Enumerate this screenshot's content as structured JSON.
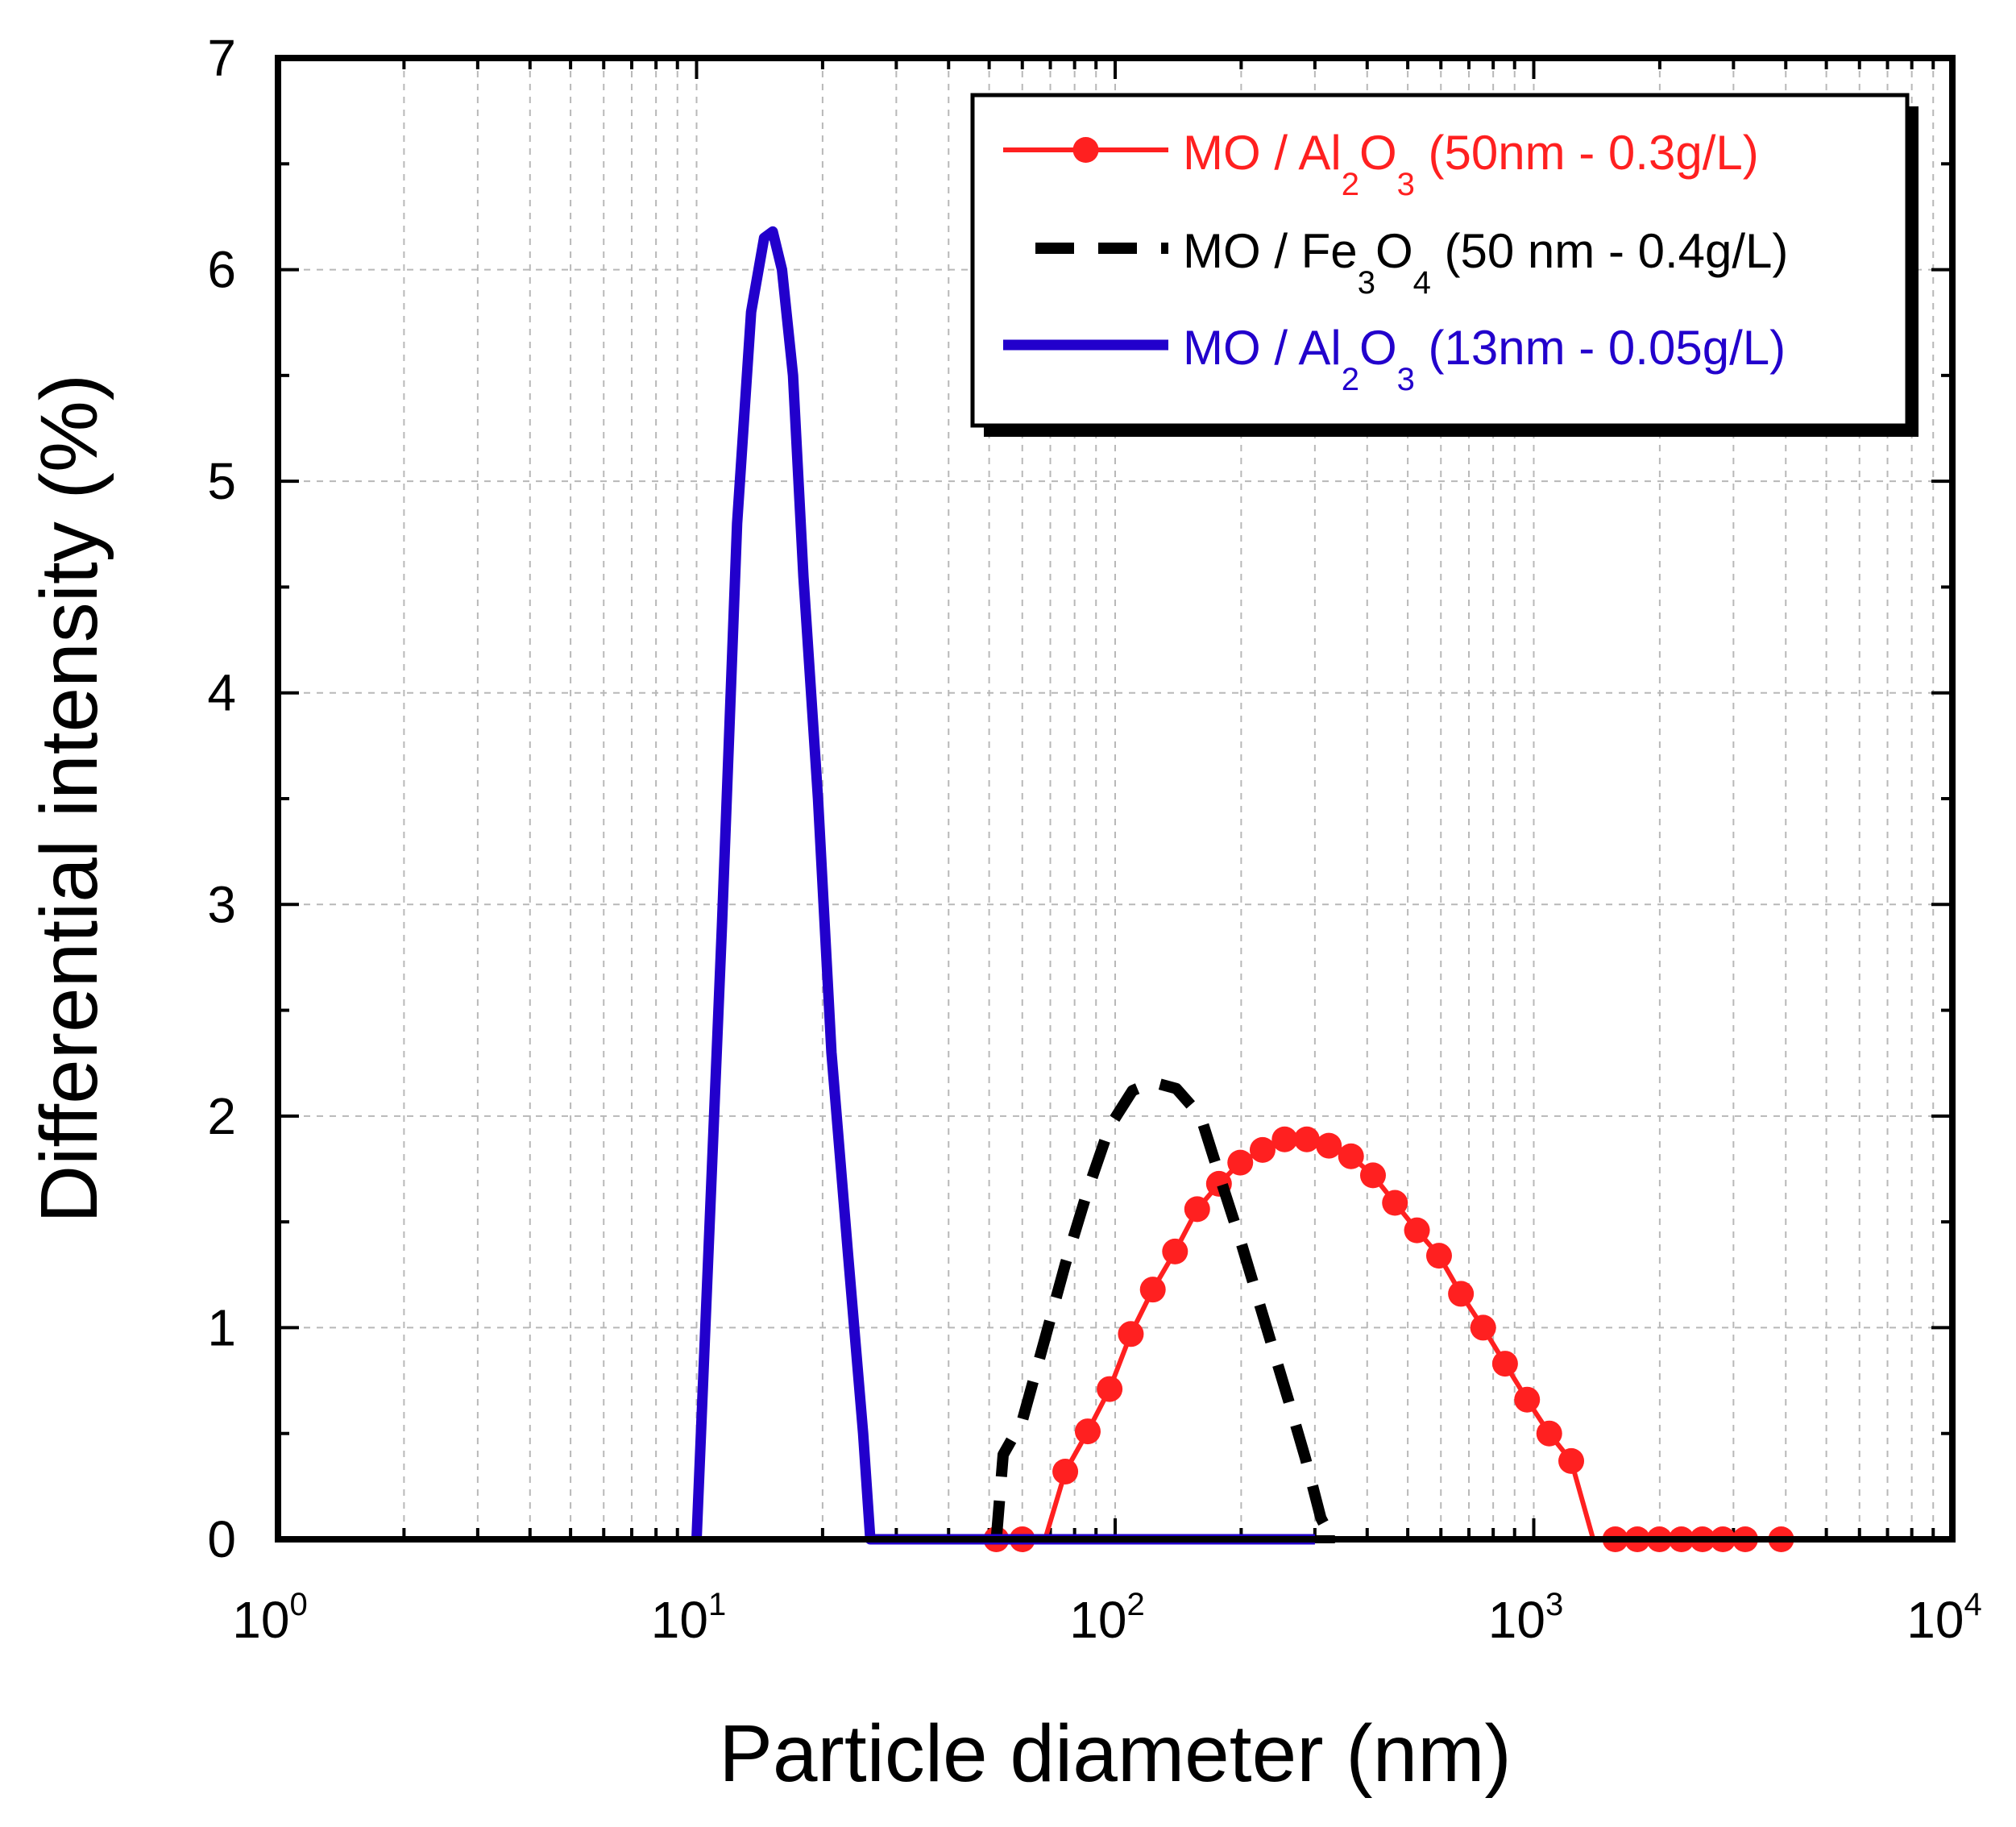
{
  "chart_data": {
    "type": "line",
    "xscale": "log",
    "xlim": [
      1,
      10000
    ],
    "ylim": [
      0,
      7
    ],
    "grid": true,
    "xlabel": "Particle diameter (nm)",
    "ylabel": "Differential intensity (%)",
    "xticks": [
      {
        "base": "10",
        "exp": "0"
      },
      {
        "base": "10",
        "exp": "1"
      },
      {
        "base": "10",
        "exp": "2"
      },
      {
        "base": "10",
        "exp": "3"
      },
      {
        "base": "10",
        "exp": "4"
      }
    ],
    "yticks": [
      "0",
      "1",
      "2",
      "3",
      "4",
      "5",
      "6",
      "7"
    ],
    "legend_position": "top-right",
    "series": [
      {
        "name": "MO / Al2O3 (50nm - 0.3g/L)",
        "legend": {
          "pre": "MO / Al",
          "sub1": "2",
          "mid": "O",
          "sub2": "3",
          "post": " (50nm - 0.3g/L)"
        },
        "color": "#ff2020",
        "style": "line-markers",
        "x": [
          52,
          60,
          68,
          76,
          86,
          97,
          109,
          123,
          139,
          157,
          177,
          199,
          225,
          254,
          287,
          324,
          366,
          413,
          466,
          526,
          594,
          670,
          757,
          854,
          964,
          1089,
          1229,
          1387,
          1566,
          1768,
          1996,
          2253,
          2530,
          2830,
          3200,
          3900
        ],
        "y": [
          0,
          0,
          0,
          0.32,
          0.51,
          0.71,
          0.97,
          1.18,
          1.36,
          1.56,
          1.68,
          1.78,
          1.84,
          1.89,
          1.89,
          1.86,
          1.81,
          1.72,
          1.59,
          1.46,
          1.34,
          1.16,
          1.0,
          0.83,
          0.66,
          0.5,
          0.37,
          0,
          0,
          0,
          0,
          0,
          0,
          0,
          0,
          0
        ],
        "markers": [
          true,
          true,
          false,
          true,
          true,
          true,
          true,
          true,
          true,
          true,
          true,
          true,
          true,
          true,
          true,
          true,
          true,
          true,
          true,
          true,
          true,
          true,
          true,
          true,
          true,
          true,
          true,
          false,
          true,
          true,
          true,
          true,
          true,
          true,
          true,
          true
        ]
      },
      {
        "name": "MO / Fe3O4 (50 nm - 0.4g/L)",
        "legend": {
          "pre": "MO / Fe",
          "sub1": "3",
          "mid": "O",
          "sub2": "4",
          "post": " (50 nm - 0.4g/L)"
        },
        "color": "#000000",
        "style": "dashed",
        "x": [
          52,
          54,
          60,
          68,
          76,
          86,
          97,
          110,
          123,
          140,
          160,
          180,
          200,
          230,
          260,
          285,
          310,
          330,
          335
        ],
        "y": [
          0,
          0.4,
          0.56,
          0.95,
          1.3,
          1.65,
          1.95,
          2.12,
          2.16,
          2.13,
          2.0,
          1.68,
          1.4,
          1.0,
          0.65,
          0.38,
          0.1,
          0.0,
          0
        ],
        "baseline_x": [
          52,
          335
        ]
      },
      {
        "name": "MO / Al2O3 (13nm - 0.05g/L)",
        "legend": {
          "pre": "MO / Al",
          "sub1": "2",
          "mid": "O",
          "sub2": "3",
          "post": " (13nm - 0.05g/L)"
        },
        "color": "#2200cc",
        "style": "solid-thick",
        "x": [
          10,
          11.5,
          12.5,
          13.5,
          14.5,
          15.2,
          16,
          17,
          18,
          19.5,
          21,
          23,
          25,
          26,
          52,
          300
        ],
        "y": [
          0,
          2.9,
          4.8,
          5.8,
          6.15,
          6.18,
          6.0,
          5.5,
          4.55,
          3.5,
          2.3,
          1.35,
          0.5,
          0,
          0,
          0
        ]
      }
    ]
  }
}
